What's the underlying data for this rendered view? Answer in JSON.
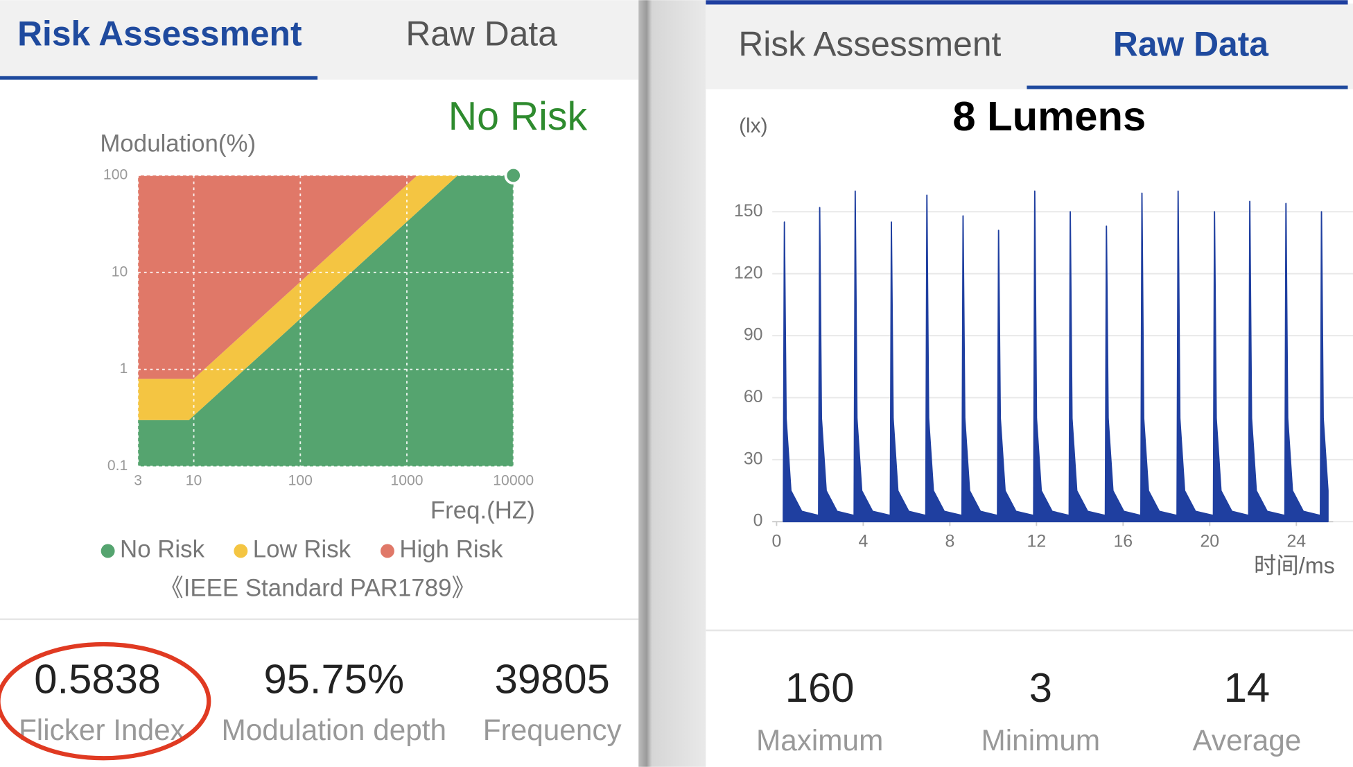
{
  "left_panel": {
    "tabs": [
      "Risk Assessment",
      "Raw Data"
    ],
    "active_tab": 0,
    "status": "No Risk",
    "status_color": "#2e8b2e",
    "chart_data": {
      "type": "zone",
      "y_label": "Modulation(%)",
      "x_label": "Freq.(HZ)",
      "log_scale": true,
      "grid": true,
      "xlim": [
        3,
        10000
      ],
      "ylim": [
        0.1,
        100
      ],
      "xticks": [
        3,
        10,
        100,
        1000,
        10000
      ],
      "yticks": [
        0.1,
        1,
        10,
        100
      ],
      "zones": [
        {
          "name": "No Risk",
          "color": "#55a46f",
          "boundary_x": [
            3,
            9,
            3000
          ],
          "boundary_y": [
            0.3,
            0.3,
            100
          ]
        },
        {
          "name": "Low Risk",
          "color": "#f4c542",
          "boundary_x": [
            3,
            10,
            1250
          ],
          "boundary_y": [
            0.8,
            0.8,
            100
          ]
        },
        {
          "name": "High Risk",
          "color": "#e07868"
        }
      ],
      "marker": {
        "x": 10000,
        "y": 100,
        "color": "#55a46f"
      }
    },
    "standard": "《IEEE Standard PAR1789》",
    "metrics": [
      {
        "value": "0.5838",
        "label": "Flicker Index"
      },
      {
        "value": "95.75%",
        "label": "Modulation depth"
      },
      {
        "value": "39805",
        "label": "Frequency"
      }
    ]
  },
  "right_panel": {
    "tabs": [
      "Risk Assessment",
      "Raw Data"
    ],
    "active_tab": 1,
    "chart_data": {
      "type": "area",
      "title": "8 Lumens",
      "y_label": "(lx)",
      "x_label": "时间/ms",
      "grid": true,
      "xlim": [
        0,
        25.5
      ],
      "ylim": [
        0,
        160
      ],
      "xticks": [
        0,
        4,
        8,
        12,
        16,
        20,
        24
      ],
      "yticks": [
        0,
        30,
        60,
        90,
        120,
        150
      ],
      "series": [
        {
          "color": "#1f3fa0",
          "x": [
            0.31,
            0.36,
            0.44,
            0.66,
            1.16,
            1.94,
            1.99,
            2.07,
            2.29,
            2.79,
            3.58,
            3.63,
            3.71,
            3.93,
            4.43,
            5.25,
            5.3,
            5.38,
            5.6,
            6.1,
            6.89,
            6.94,
            7.02,
            7.24,
            7.74,
            8.56,
            8.61,
            8.69,
            8.91,
            9.41,
            10.2,
            10.25,
            10.33,
            10.55,
            11.05,
            11.87,
            11.92,
            12,
            12.22,
            12.72,
            13.51,
            13.56,
            13.64,
            13.86,
            14.36,
            15.18,
            15.23,
            15.31,
            15.53,
            16.03,
            16.82,
            16.87,
            16.95,
            17.17,
            17.67,
            18.49,
            18.54,
            18.62,
            18.84,
            19.34,
            20.17,
            20.22,
            20.3,
            20.52,
            21.02,
            21.8,
            21.85,
            21.93,
            22.15,
            22.65,
            23.47,
            23.52,
            23.6,
            23.82,
            24.32,
            25.11,
            25.16,
            25.24,
            25.46
          ],
          "values": [
            3,
            145,
            50,
            15,
            5,
            3,
            152,
            50,
            15,
            5,
            3,
            160,
            50,
            15,
            5,
            3,
            145,
            50,
            15,
            5,
            3,
            158,
            50,
            15,
            5,
            3,
            148,
            50,
            15,
            5,
            3,
            141,
            50,
            15,
            5,
            3,
            160,
            50,
            15,
            5,
            3,
            150,
            50,
            15,
            5,
            3,
            143,
            50,
            15,
            5,
            3,
            159,
            50,
            15,
            5,
            3,
            160,
            50,
            15,
            5,
            3,
            150,
            50,
            15,
            5,
            3,
            155,
            50,
            15,
            5,
            3,
            154,
            50,
            15,
            5,
            3,
            150,
            50,
            15
          ]
        }
      ]
    },
    "stats": [
      {
        "value": 160,
        "label": "Maximum"
      },
      {
        "value": 3,
        "label": "Minimum"
      },
      {
        "value": 14,
        "label": "Average"
      }
    ]
  }
}
